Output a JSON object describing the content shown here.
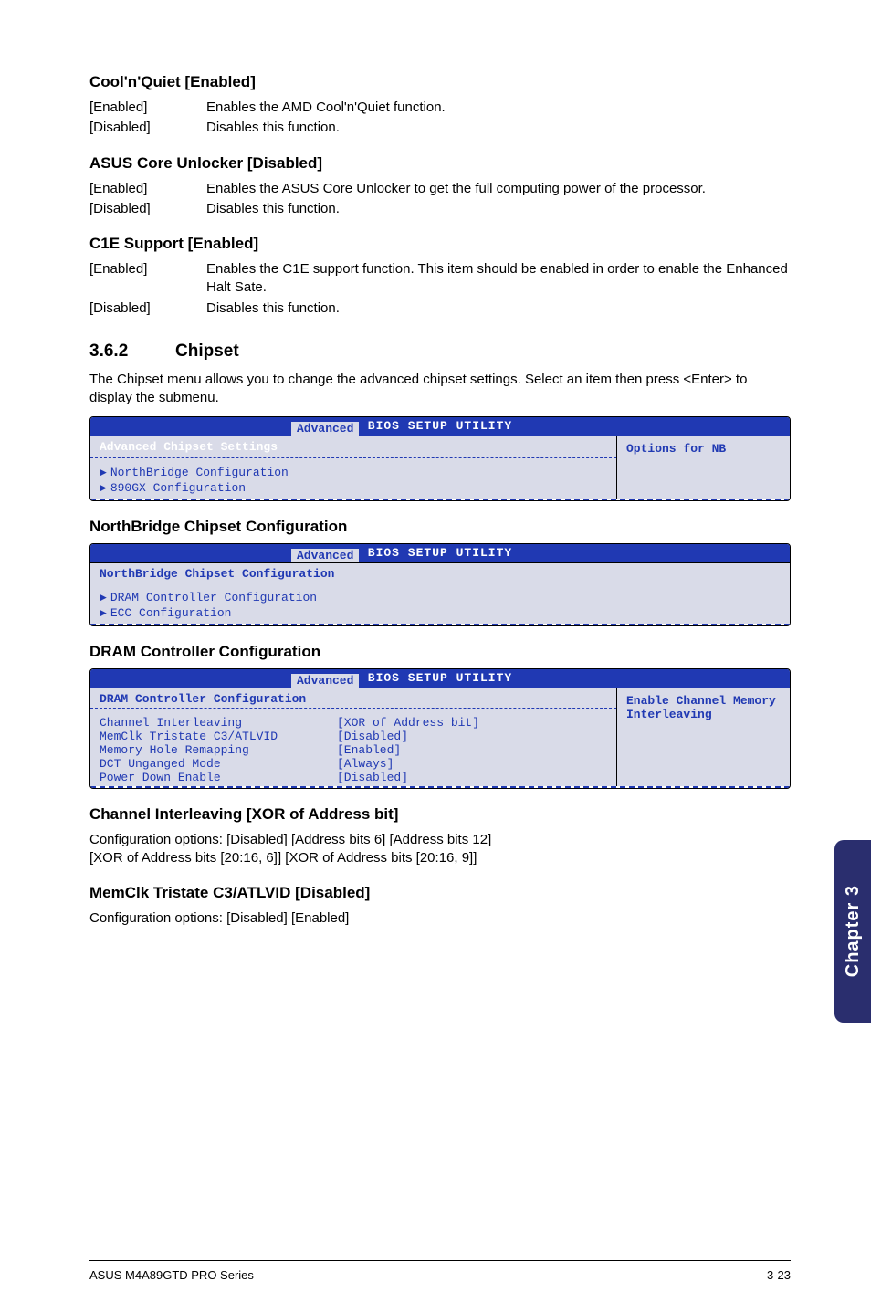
{
  "coolnquiet": {
    "title": "Cool'n'Quiet [Enabled]",
    "rows": [
      {
        "k": "[Enabled]",
        "v": "Enables the AMD Cool'n'Quiet function."
      },
      {
        "k": "[Disabled]",
        "v": "Disables this function."
      }
    ]
  },
  "unlocker": {
    "title": "ASUS Core Unlocker [Disabled]",
    "rows": [
      {
        "k": "[Enabled]",
        "v": "Enables the ASUS Core Unlocker to get the full computing power of the processor."
      },
      {
        "k": "[Disabled]",
        "v": "Disables this function."
      }
    ]
  },
  "c1e": {
    "title": "C1E Support [Enabled]",
    "rows": [
      {
        "k": "[Enabled]",
        "v": "Enables the C1E support function. This item should be enabled in order to enable the Enhanced Halt Sate."
      },
      {
        "k": "[Disabled]",
        "v": "Disables this function."
      }
    ]
  },
  "chipset": {
    "num": "3.6.2",
    "title": "Chipset",
    "para": "The Chipset menu allows you to change the advanced chipset settings. Select an item then press <Enter> to display the submenu."
  },
  "bios_common": {
    "title": "BIOS SETUP UTILITY",
    "tab": "Advanced"
  },
  "bios1": {
    "heading": "Advanced Chipset Settings",
    "items": [
      "NorthBridge Configuration",
      "890GX Configuration"
    ],
    "right": "Options for NB"
  },
  "nb_head": "NorthBridge Chipset Configuration",
  "bios2": {
    "heading": "NorthBridge Chipset Configuration",
    "items": [
      "DRAM Controller Configuration",
      "ECC Configuration"
    ]
  },
  "dram_head": "DRAM Controller Configuration",
  "bios3": {
    "heading": "DRAM Controller Configuration",
    "right": "Enable Channel Memory Interleaving",
    "rows": [
      {
        "k": "Channel Interleaving",
        "v": "[XOR of Address bit]"
      },
      {
        "k": "MemClk Tristate C3/ATLVID",
        "v": "[Disabled]"
      },
      {
        "k": "Memory Hole Remapping",
        "v": "[Enabled]"
      },
      {
        "k": "DCT Unganged Mode",
        "v": "[Always]"
      },
      {
        "k": "Power Down Enable",
        "v": "[Disabled]"
      }
    ]
  },
  "chan": {
    "title": "Channel Interleaving [XOR of Address bit]",
    "l1": "Configuration options: [Disabled] [Address bits 6] [Address bits 12]",
    "l2": "[XOR of Address bits [20:16, 6]] [XOR of Address bits [20:16, 9]]"
  },
  "memclk": {
    "title": "MemClk Tristate C3/ATLVID [Disabled]",
    "l1": "Configuration options: [Disabled] [Enabled]"
  },
  "side": "Chapter 3",
  "footer": {
    "left": "ASUS M4A89GTD PRO Series",
    "right": "3-23"
  }
}
